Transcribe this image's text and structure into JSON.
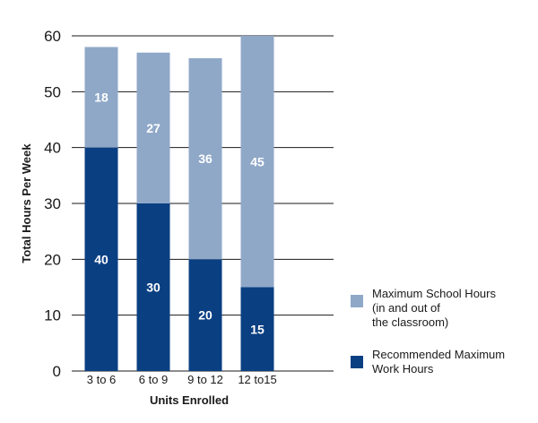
{
  "chart_data": {
    "type": "bar",
    "stacked": true,
    "categories": [
      "3 to 6",
      "6 to 9",
      "9 to 12",
      "12  to15"
    ],
    "series": [
      {
        "name": "Recommended Maximum\nWork Hours",
        "values": [
          40,
          30,
          20,
          15
        ],
        "color": "#0a3f82"
      },
      {
        "name": "Maximum School Hours\n(in and out of\nthe classroom)",
        "values": [
          18,
          27,
          36,
          45
        ],
        "color": "#8fa8c8"
      }
    ],
    "xlabel": "Units Enrolled",
    "ylabel": "Total Hours Per Week",
    "ylim": [
      0,
      60
    ],
    "yticks": [
      0,
      10,
      20,
      30,
      40,
      50,
      60
    ],
    "grid": true,
    "legend_position": "right"
  }
}
